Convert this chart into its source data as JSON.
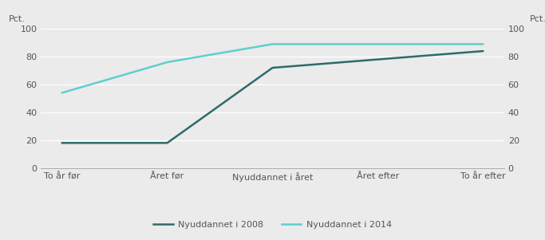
{
  "x_labels": [
    "To år før",
    "Året før",
    "Nyuddannet i året",
    "Året efter",
    "To år efter"
  ],
  "series_2008": [
    18,
    18,
    72,
    78,
    84
  ],
  "series_2014": [
    54,
    76,
    89,
    89,
    89
  ],
  "color_2008": "#2e6b6b",
  "color_2014": "#5ecfcf",
  "label_2008": "Nyuddannet i 2008",
  "label_2014": "Nyuddannet i 2014",
  "ylabel_left": "Pct.",
  "ylabel_right": "Pct.",
  "ylim": [
    0,
    100
  ],
  "yticks": [
    0,
    20,
    40,
    60,
    80,
    100
  ],
  "background_color": "#ebebeb",
  "grid_color": "#ffffff",
  "linewidth": 1.8,
  "tick_fontsize": 8,
  "legend_fontsize": 8
}
